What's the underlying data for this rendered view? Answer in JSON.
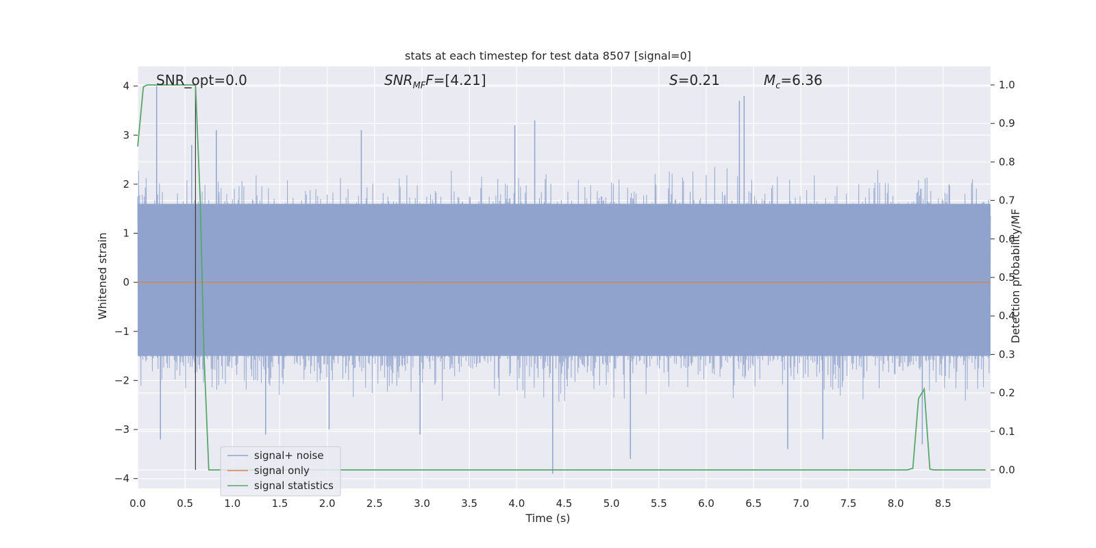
{
  "chart_data": {
    "type": "line",
    "title": "stats at each timestep for test data 8507 [signal=0]",
    "xlabel": "Time (s)",
    "ylabel": "Whitened strain",
    "ylabel_right": "Detection probability/MF",
    "xlim": [
      0.0,
      9.0
    ],
    "ylim": [
      -4.2,
      4.4
    ],
    "ylim_right": [
      -0.048,
      1.048
    ],
    "x_ticks": [
      "0.0",
      "0.5",
      "1.0",
      "1.5",
      "2.0",
      "2.5",
      "3.0",
      "3.5",
      "4.0",
      "4.5",
      "5.0",
      "5.5",
      "6.0",
      "6.5",
      "7.0",
      "7.5",
      "8.0",
      "8.5"
    ],
    "y_ticks": [
      "4",
      "3",
      "2",
      "1",
      "0",
      "−1",
      "−2",
      "−3",
      "−4"
    ],
    "y_ticks_right": [
      "1.0",
      "0.9",
      "0.8",
      "0.7",
      "0.6",
      "0.5",
      "0.4",
      "0.3",
      "0.2",
      "0.1",
      "0.0"
    ],
    "grid": true,
    "legend_position": "lower-left",
    "annotations": {
      "snr_opt": "SNR_opt=0.0",
      "snr_mf_main": "SNR",
      "snr_mf_sub": "MF",
      "snr_mf_value": "=[4.21]",
      "s_var": "S",
      "s_value": "=0.21",
      "mc_var": "M",
      "mc_sub": "c",
      "mc_value": "=6.36"
    },
    "vertical_marker_x": 0.61,
    "noise_envelope": {
      "note_x": [
        0.0,
        0.5,
        1.0,
        1.5,
        2.0,
        2.5,
        3.0,
        3.5,
        4.0,
        4.5,
        5.0,
        5.5,
        6.0,
        6.5,
        7.0,
        7.5,
        8.0,
        8.5,
        9.0
      ],
      "spikes": [
        {
          "x": 0.2,
          "y": 4.0
        },
        {
          "x": 0.57,
          "y": 2.8
        },
        {
          "x": 0.83,
          "y": 3.1
        },
        {
          "x": 2.36,
          "y": 3.1
        },
        {
          "x": 3.98,
          "y": 3.2
        },
        {
          "x": 4.19,
          "y": 3.3
        },
        {
          "x": 6.35,
          "y": 3.7
        },
        {
          "x": 6.4,
          "y": 3.8
        },
        {
          "x": 0.24,
          "y": -3.2
        },
        {
          "x": 1.35,
          "y": -3.1
        },
        {
          "x": 2.02,
          "y": -3.0
        },
        {
          "x": 2.98,
          "y": -3.1
        },
        {
          "x": 4.38,
          "y": -3.9
        },
        {
          "x": 5.2,
          "y": -3.6
        },
        {
          "x": 6.86,
          "y": -3.4
        },
        {
          "x": 7.23,
          "y": -3.2
        },
        {
          "x": 8.28,
          "y": -3.3
        }
      ]
    },
    "series": [
      {
        "name": "signal+ noise",
        "color": "#8fa3cc",
        "axis": "left",
        "band": [
          -1.5,
          1.6
        ],
        "typical_peak": 2.4
      },
      {
        "name": "signal only",
        "color": "#dd8452",
        "axis": "left",
        "x": [
          0.0,
          9.0
        ],
        "values": [
          0.0,
          0.0
        ]
      },
      {
        "name": "signal statistics",
        "color": "#55a868",
        "axis": "right",
        "x": [
          0.0,
          0.06,
          0.1,
          0.2,
          0.3,
          0.4,
          0.5,
          0.61,
          0.66,
          0.7,
          0.75,
          1.0,
          2.0,
          3.0,
          4.0,
          5.0,
          6.0,
          7.0,
          8.0,
          8.12,
          8.18,
          8.24,
          8.3,
          8.36,
          8.4,
          8.5,
          8.95
        ],
        "values": [
          0.84,
          0.995,
          1.0,
          1.0,
          1.0,
          1.0,
          1.0,
          1.0,
          0.7,
          0.3,
          0.0,
          0.0,
          0.0,
          0.0,
          0.0,
          0.0,
          0.0,
          0.0,
          0.0,
          0.0,
          0.004,
          0.185,
          0.21,
          0.002,
          0.0,
          0.0,
          0.0
        ]
      }
    ]
  }
}
